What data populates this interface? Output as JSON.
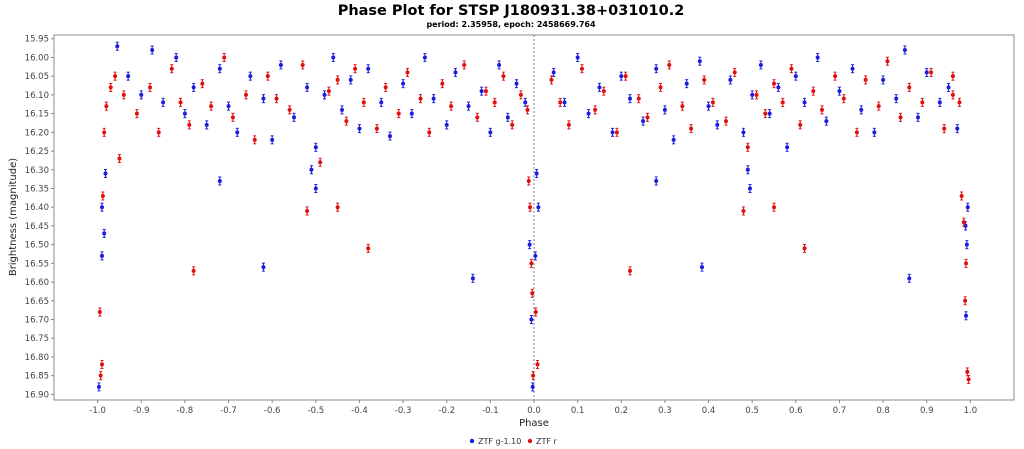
{
  "chart_data": {
    "type": "scatter",
    "title": "Phase Plot for STSP J180931.38+031010.2",
    "subtitle": "period: 2.35958, epoch: 2458669.764",
    "xlabel": "Phase",
    "ylabel": "Brightness (magnitude)",
    "xlim": [
      -1.1,
      1.1
    ],
    "ylim": [
      15.94,
      16.915
    ],
    "y_inverted": true,
    "x_ticks": [
      "-1.0",
      "-0.9",
      "-0.8",
      "-0.7",
      "-0.6",
      "-0.5",
      "-0.4",
      "-0.3",
      "-0.2",
      "-0.1",
      "0.0",
      "0.1",
      "0.2",
      "0.3",
      "0.4",
      "0.5",
      "0.6",
      "0.7",
      "0.8",
      "0.9",
      "1.0"
    ],
    "y_ticks": [
      "15.95",
      "16.00",
      "16.05",
      "16.10",
      "16.15",
      "16.20",
      "16.25",
      "16.30",
      "16.35",
      "16.40",
      "16.45",
      "16.50",
      "16.55",
      "16.60",
      "16.65",
      "16.70",
      "16.75",
      "16.80",
      "16.85",
      "16.90"
    ],
    "grid": false,
    "reference_line_x": 0.0,
    "legend_position": "bottom-center",
    "series": [
      {
        "name": "ZTF g-1.10",
        "color": "#1c1cdc",
        "x": [
          -0.955,
          -0.93,
          -0.9,
          -0.875,
          -0.85,
          -0.82,
          -0.8,
          -0.78,
          -0.75,
          -0.72,
          -0.7,
          -0.68,
          -0.65,
          -0.62,
          -0.6,
          -0.58,
          -0.55,
          -0.52,
          -0.5,
          -0.48,
          -0.46,
          -0.44,
          -0.42,
          -0.4,
          -0.38,
          -0.35,
          -0.33,
          -0.3,
          -0.28,
          -0.25,
          -0.23,
          -0.2,
          -0.18,
          -0.15,
          -0.12,
          -0.1,
          -0.08,
          -0.06,
          -0.04,
          -0.02,
          -0.997,
          -0.99,
          -0.985,
          -0.982,
          -0.99,
          -0.72,
          -0.62,
          -0.14,
          -0.5,
          -0.51,
          -0.01,
          -0.006,
          -0.003,
          0.003,
          0.01,
          0.006,
          0.045,
          0.07,
          0.1,
          0.125,
          0.15,
          0.18,
          0.2,
          0.22,
          0.25,
          0.28,
          0.3,
          0.32,
          0.35,
          0.38,
          0.4,
          0.42,
          0.45,
          0.48,
          0.5,
          0.52,
          0.54,
          0.56,
          0.58,
          0.6,
          0.62,
          0.65,
          0.67,
          0.7,
          0.73,
          0.75,
          0.78,
          0.8,
          0.83,
          0.85,
          0.88,
          0.9,
          0.93,
          0.95,
          0.97,
          0.28,
          0.385,
          0.86,
          0.495,
          0.49,
          0.99,
          0.992,
          0.994,
          0.989
        ],
        "y": [
          15.97,
          16.05,
          16.1,
          15.98,
          16.12,
          16.0,
          16.15,
          16.08,
          16.18,
          16.03,
          16.13,
          16.2,
          16.05,
          16.11,
          16.22,
          16.02,
          16.16,
          16.08,
          16.24,
          16.1,
          16.0,
          16.14,
          16.06,
          16.19,
          16.03,
          16.12,
          16.21,
          16.07,
          16.15,
          16.0,
          16.11,
          16.18,
          16.04,
          16.13,
          16.09,
          16.2,
          16.02,
          16.16,
          16.07,
          16.12,
          16.88,
          16.53,
          16.47,
          16.31,
          16.4,
          16.33,
          16.56,
          16.59,
          16.35,
          16.3,
          16.5,
          16.7,
          16.88,
          16.53,
          16.4,
          16.31,
          16.04,
          16.12,
          16.0,
          16.15,
          16.08,
          16.2,
          16.05,
          16.11,
          16.17,
          16.03,
          16.14,
          16.22,
          16.07,
          16.01,
          16.13,
          16.18,
          16.06,
          16.2,
          16.1,
          16.02,
          16.15,
          16.08,
          16.24,
          16.05,
          16.12,
          16.0,
          16.17,
          16.09,
          16.03,
          16.14,
          16.2,
          16.06,
          16.11,
          15.98,
          16.16,
          16.04,
          16.12,
          16.08,
          16.19,
          16.33,
          16.56,
          16.59,
          16.35,
          16.3,
          16.69,
          16.5,
          16.4,
          16.45
        ]
      },
      {
        "name": "ZTF r",
        "color": "#e01010",
        "x": [
          -0.96,
          -0.94,
          -0.91,
          -0.88,
          -0.86,
          -0.83,
          -0.81,
          -0.79,
          -0.76,
          -0.74,
          -0.71,
          -0.69,
          -0.66,
          -0.64,
          -0.61,
          -0.59,
          -0.56,
          -0.53,
          -0.49,
          -0.47,
          -0.45,
          -0.43,
          -0.41,
          -0.39,
          -0.36,
          -0.34,
          -0.31,
          -0.29,
          -0.26,
          -0.24,
          -0.21,
          -0.19,
          -0.16,
          -0.13,
          -0.11,
          -0.09,
          -0.07,
          -0.05,
          -0.03,
          -0.015,
          -0.995,
          -0.993,
          -0.99,
          -0.988,
          -0.985,
          -0.98,
          -0.97,
          -0.95,
          -0.78,
          -0.52,
          -0.45,
          -0.38,
          -0.012,
          -0.009,
          -0.006,
          -0.004,
          -0.002,
          0.004,
          0.008,
          0.04,
          0.06,
          0.08,
          0.11,
          0.14,
          0.16,
          0.19,
          0.21,
          0.24,
          0.26,
          0.29,
          0.31,
          0.34,
          0.36,
          0.39,
          0.41,
          0.44,
          0.46,
          0.49,
          0.51,
          0.53,
          0.55,
          0.57,
          0.59,
          0.61,
          0.64,
          0.66,
          0.69,
          0.71,
          0.74,
          0.76,
          0.79,
          0.81,
          0.84,
          0.86,
          0.89,
          0.91,
          0.94,
          0.96,
          0.22,
          0.48,
          0.55,
          0.62,
          0.98,
          0.985,
          0.988,
          0.99,
          0.993,
          0.996,
          0.975,
          0.96
        ],
        "y": [
          16.05,
          16.1,
          16.15,
          16.08,
          16.2,
          16.03,
          16.12,
          16.18,
          16.07,
          16.13,
          16.0,
          16.16,
          16.1,
          16.22,
          16.05,
          16.11,
          16.14,
          16.02,
          16.28,
          16.09,
          16.06,
          16.17,
          16.03,
          16.12,
          16.19,
          16.08,
          16.15,
          16.04,
          16.11,
          16.2,
          16.07,
          16.13,
          16.02,
          16.16,
          16.09,
          16.12,
          16.05,
          16.18,
          16.1,
          16.14,
          16.68,
          16.85,
          16.82,
          16.37,
          16.2,
          16.13,
          16.08,
          16.27,
          16.57,
          16.41,
          16.4,
          16.51,
          16.33,
          16.4,
          16.55,
          16.63,
          16.85,
          16.68,
          16.82,
          16.06,
          16.12,
          16.18,
          16.03,
          16.14,
          16.09,
          16.2,
          16.05,
          16.11,
          16.16,
          16.08,
          16.02,
          16.13,
          16.19,
          16.06,
          16.12,
          16.17,
          16.04,
          16.24,
          16.1,
          16.15,
          16.07,
          16.12,
          16.03,
          16.18,
          16.09,
          16.14,
          16.05,
          16.11,
          16.2,
          16.06,
          16.13,
          16.01,
          16.16,
          16.08,
          16.12,
          16.04,
          16.19,
          16.1,
          16.57,
          16.41,
          16.4,
          16.51,
          16.37,
          16.44,
          16.65,
          16.55,
          16.84,
          16.86,
          16.12,
          16.05
        ]
      }
    ]
  }
}
